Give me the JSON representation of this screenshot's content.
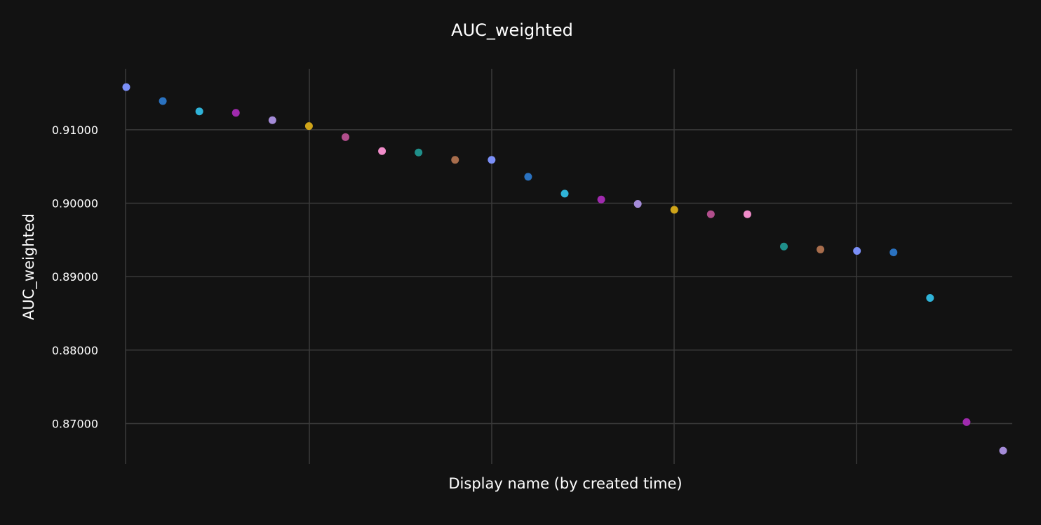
{
  "chart_data": {
    "type": "scatter",
    "title": "AUC_weighted",
    "xlabel": "Display name (by created time)",
    "ylabel": "AUC_weighted",
    "y_ticks": [
      "0.91000",
      "0.90000",
      "0.89000",
      "0.88000",
      "0.87000"
    ],
    "y_tick_values": [
      0.91,
      0.9,
      0.89,
      0.88,
      0.87
    ],
    "ylim": [
      0.8645,
      0.9183
    ],
    "x_tick_count": 5,
    "grid": true,
    "x_labels_shown": false,
    "points": [
      {
        "x": 1,
        "y": 0.9158,
        "color": "#7b8ff7"
      },
      {
        "x": 2,
        "y": 0.9139,
        "color": "#2a72c0"
      },
      {
        "x": 3,
        "y": 0.9125,
        "color": "#2fb3d8"
      },
      {
        "x": 4,
        "y": 0.9123,
        "color": "#a02aae"
      },
      {
        "x": 5,
        "y": 0.9113,
        "color": "#a48bd8"
      },
      {
        "x": 6,
        "y": 0.9105,
        "color": "#cfa419"
      },
      {
        "x": 7,
        "y": 0.909,
        "color": "#b14e8c"
      },
      {
        "x": 8,
        "y": 0.9071,
        "color": "#f08cc9"
      },
      {
        "x": 9,
        "y": 0.9069,
        "color": "#1f8f8a"
      },
      {
        "x": 10,
        "y": 0.9059,
        "color": "#a86d4c"
      },
      {
        "x": 11,
        "y": 0.9059,
        "color": "#7b8ff7"
      },
      {
        "x": 12,
        "y": 0.9036,
        "color": "#2a72c0"
      },
      {
        "x": 13,
        "y": 0.9013,
        "color": "#2fb3d8"
      },
      {
        "x": 14,
        "y": 0.9005,
        "color": "#a02aae"
      },
      {
        "x": 15,
        "y": 0.8999,
        "color": "#a48bd8"
      },
      {
        "x": 16,
        "y": 0.8991,
        "color": "#cfa419"
      },
      {
        "x": 17,
        "y": 0.8985,
        "color": "#b14e8c"
      },
      {
        "x": 18,
        "y": 0.8985,
        "color": "#f08cc9"
      },
      {
        "x": 19,
        "y": 0.8941,
        "color": "#1f8f8a"
      },
      {
        "x": 20,
        "y": 0.8937,
        "color": "#a86d4c"
      },
      {
        "x": 21,
        "y": 0.8935,
        "color": "#7b8ff7"
      },
      {
        "x": 22,
        "y": 0.8933,
        "color": "#2a72c0"
      },
      {
        "x": 23,
        "y": 0.8871,
        "color": "#2fb3d8"
      },
      {
        "x": 24,
        "y": 0.8702,
        "color": "#a02aae"
      },
      {
        "x": 25,
        "y": 0.8663,
        "color": "#a48bd8"
      }
    ]
  }
}
